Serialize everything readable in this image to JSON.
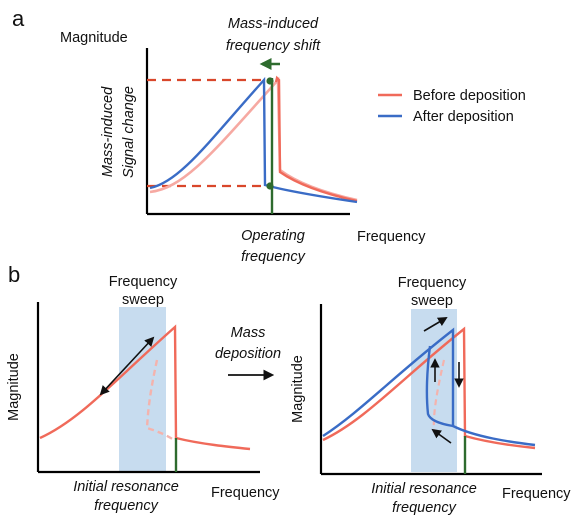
{
  "panel_a": {
    "label": "a",
    "y_axis_label": "Magnitude",
    "x_axis_label": "Frequency",
    "shift_label_line1": "Mass-induced",
    "shift_label_line2": "frequency shift",
    "signal_label_line1": "Mass-induced",
    "signal_label_line2": "Signal change",
    "operating_line1": "Operating",
    "operating_line2": "frequency",
    "legend": [
      {
        "label": "Before deposition",
        "color": "#f06a5a"
      },
      {
        "label": "After deposition",
        "color": "#3a6cc6"
      }
    ]
  },
  "panel_b": {
    "label": "b",
    "left": {
      "y_axis_label": "Magnitude",
      "x_axis_label": "Frequency",
      "sweep_line1": "Frequency",
      "sweep_line2": "sweep",
      "resonance_line1": "Initial resonance",
      "resonance_line2": "frequency"
    },
    "middle_line1": "Mass",
    "middle_line2": "deposition",
    "right": {
      "y_axis_label": "Magnitude",
      "x_axis_label": "Frequency",
      "sweep_line1": "Frequency",
      "sweep_line2": "sweep",
      "resonance_line1": "Initial resonance",
      "resonance_line2": "frequency"
    }
  },
  "colors": {
    "before": "#f06a5a",
    "before_light": "#f6a9a2",
    "after": "#3a6cc6",
    "dashed": "#d9472b",
    "operating_line": "#2e6b2e",
    "sweep_band": "#c7dcef",
    "arrow": "#111111"
  }
}
